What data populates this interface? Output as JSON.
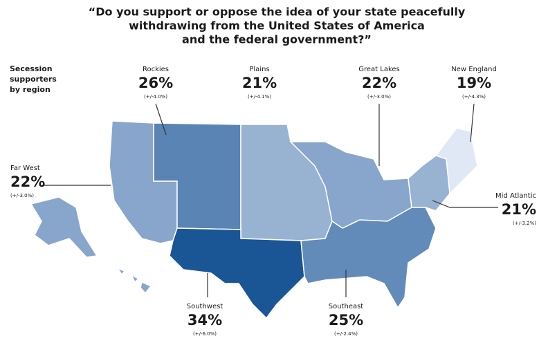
{
  "title_lines": [
    "“Do you support or oppose the idea of your state peacefully",
    "withdrawing from the United States of America",
    "and the federal government?”"
  ],
  "side_label_lines": [
    "Secession",
    "supporters",
    "by region"
  ],
  "regions": [
    {
      "name": "Far West",
      "value": 22,
      "value_label": "22%",
      "margin": "(+/-3.0%)"
    },
    {
      "name": "Rockies",
      "value": 26,
      "value_label": "26%",
      "margin": "(+/-4.0%)"
    },
    {
      "name": "Plains",
      "value": 21,
      "value_label": "21%",
      "margin": "(+/-4.1%)"
    },
    {
      "name": "Great Lakes",
      "value": 22,
      "value_label": "22%",
      "margin": "(+/-3.0%)"
    },
    {
      "name": "New England",
      "value": 19,
      "value_label": "19%",
      "margin": "(+/-4.3%)"
    },
    {
      "name": "Mid Atlantic",
      "value": 21,
      "value_label": "21%",
      "margin": "(+/-3.2%)"
    },
    {
      "name": "Southwest",
      "value": 34,
      "value_label": "34%",
      "margin": "(+/-6.0%)"
    },
    {
      "name": "Southeast",
      "value": 25,
      "value_label": "25%",
      "margin": "(+/-2.4%)"
    }
  ]
}
